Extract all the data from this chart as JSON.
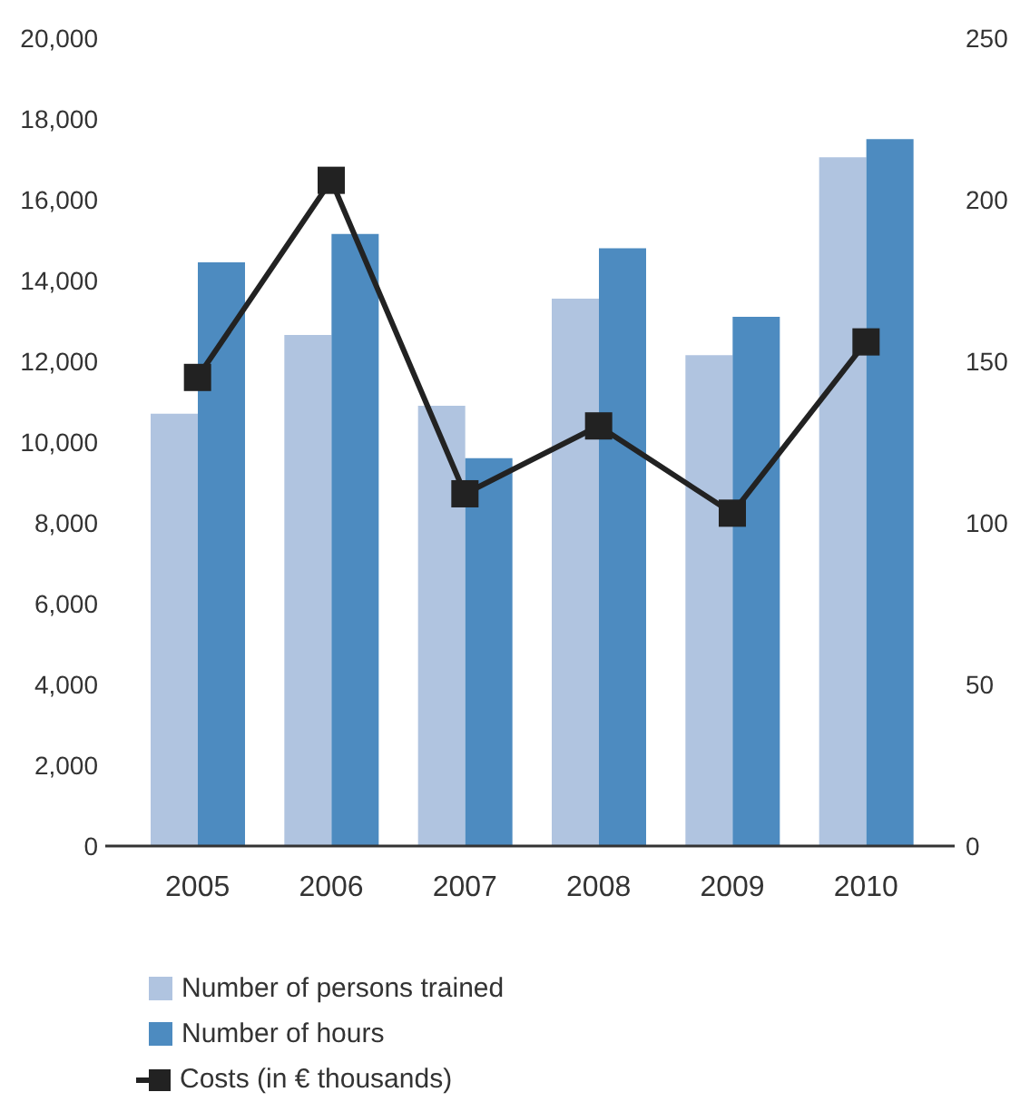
{
  "chart_data": {
    "type": "bar",
    "categories": [
      "2005",
      "2006",
      "2007",
      "2008",
      "2009",
      "2010"
    ],
    "series": [
      {
        "name": "Number of persons trained",
        "color": "#b0c4e0",
        "values": [
          10700,
          12650,
          10900,
          13550,
          12150,
          17050
        ]
      },
      {
        "name": "Number of hours",
        "color": "#4d8bc0",
        "values": [
          14450,
          15150,
          9600,
          14800,
          13100,
          17500
        ]
      },
      {
        "name": "Costs (in € thousands)",
        "type": "line",
        "axis": "y2",
        "color": "#222222",
        "values": [
          145,
          206,
          109,
          130,
          103,
          156
        ]
      }
    ],
    "ylim": [
      0,
      20000
    ],
    "yticks": [
      0,
      {
        "value": 2000,
        "label": "2,000"
      },
      {
        "value": 4000,
        "label": "4,000"
      },
      {
        "value": 6000,
        "label": "6,000"
      },
      {
        "value": 8000,
        "label": "8,000"
      },
      {
        "value": 10000,
        "label": "10,000"
      },
      {
        "value": 12000,
        "label": "12,000"
      },
      {
        "value": 14000,
        "label": "14,000"
      },
      {
        "value": 16000,
        "label": "16,000"
      },
      {
        "value": 18000,
        "label": "18,000"
      },
      {
        "value": 20000,
        "label": "20,000"
      }
    ],
    "y2lim": [
      0,
      250
    ],
    "y2ticks": [
      0,
      50,
      100,
      150,
      200,
      250
    ],
    "marker": "square",
    "line_style": "solid",
    "legend": "bottom"
  }
}
